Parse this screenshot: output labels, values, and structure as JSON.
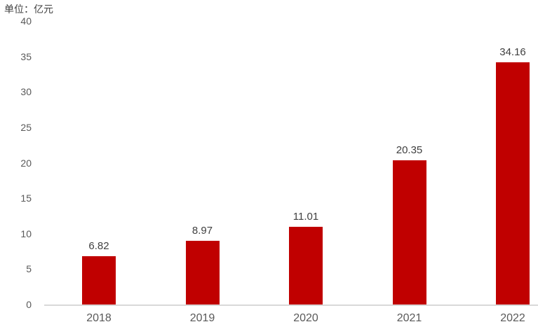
{
  "chart_data": {
    "type": "bar",
    "title": "单位：亿元",
    "categories": [
      "2018",
      "2019",
      "2020",
      "2021",
      "2022"
    ],
    "values": [
      6.82,
      8.97,
      11.01,
      20.35,
      34.16
    ],
    "data_labels": [
      "6.82",
      "8.97",
      "11.01",
      "20.35",
      "34.16"
    ],
    "xlabel": "",
    "ylabel": "",
    "ylim": [
      0,
      40
    ],
    "ytick_step": 5,
    "ytick_labels": [
      "0",
      "5",
      "10",
      "15",
      "20",
      "25",
      "30",
      "35",
      "40"
    ],
    "grid": false,
    "legend": "none",
    "colors": {
      "bar": "#C00000",
      "axis_text": "#595959",
      "value_label_text": "#404040",
      "unit_label_text": "#404040",
      "axis_line": "#D9D9D9",
      "background": "#FFFFFF"
    }
  }
}
